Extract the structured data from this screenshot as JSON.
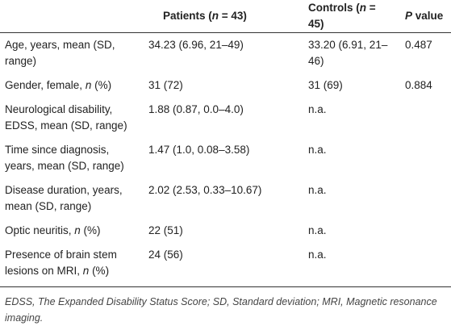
{
  "table": {
    "header": [
      "",
      [
        {
          "text": "Patients ("
        },
        {
          "text": "n",
          "italic": true
        },
        {
          "text": " = 43)"
        }
      ],
      [
        {
          "text": "Controls ("
        },
        {
          "text": "n",
          "italic": true
        },
        {
          "text": " = 45)"
        }
      ],
      [
        {
          "text": "P",
          "italic": true
        },
        {
          "text": " value"
        }
      ]
    ],
    "rows": [
      [
        "Age, years, mean (SD, range)",
        "34.23 (6.96, 21–49)",
        "33.20 (6.91, 21–46)",
        "0.487"
      ],
      [
        [
          {
            "text": "Gender, female, "
          },
          {
            "text": "n",
            "italic": true
          },
          {
            "text": " (%)"
          }
        ],
        "31 (72)",
        "31 (69)",
        "0.884"
      ],
      [
        "Neurological disability, EDSS, mean (SD, range)",
        "1.88 (0.87, 0.0–4.0)",
        "n.a.",
        null
      ],
      [
        "Time since diagnosis, years, mean (SD, range)",
        "1.47 (1.0, 0.08–3.58)",
        "n.a.",
        null
      ],
      [
        "Disease duration, years, mean (SD, range)",
        "2.02 (2.53, 0.33–10.67)",
        "n.a.",
        null
      ],
      [
        [
          {
            "text": "Optic neuritis, "
          },
          {
            "text": "n",
            "italic": true
          },
          {
            "text": " (%)"
          }
        ],
        "22 (51)",
        "n.a.",
        null
      ],
      [
        [
          {
            "text": "Presence of brain stem lesions on MRI, "
          },
          {
            "text": "n",
            "italic": true
          },
          {
            "text": " (%)"
          }
        ],
        "24 (56)",
        "n.a.",
        null
      ]
    ]
  },
  "footnote": "EDSS, The Expanded Disability Status Score; SD, Standard deviation; MRI, Magnetic resonance imaging."
}
